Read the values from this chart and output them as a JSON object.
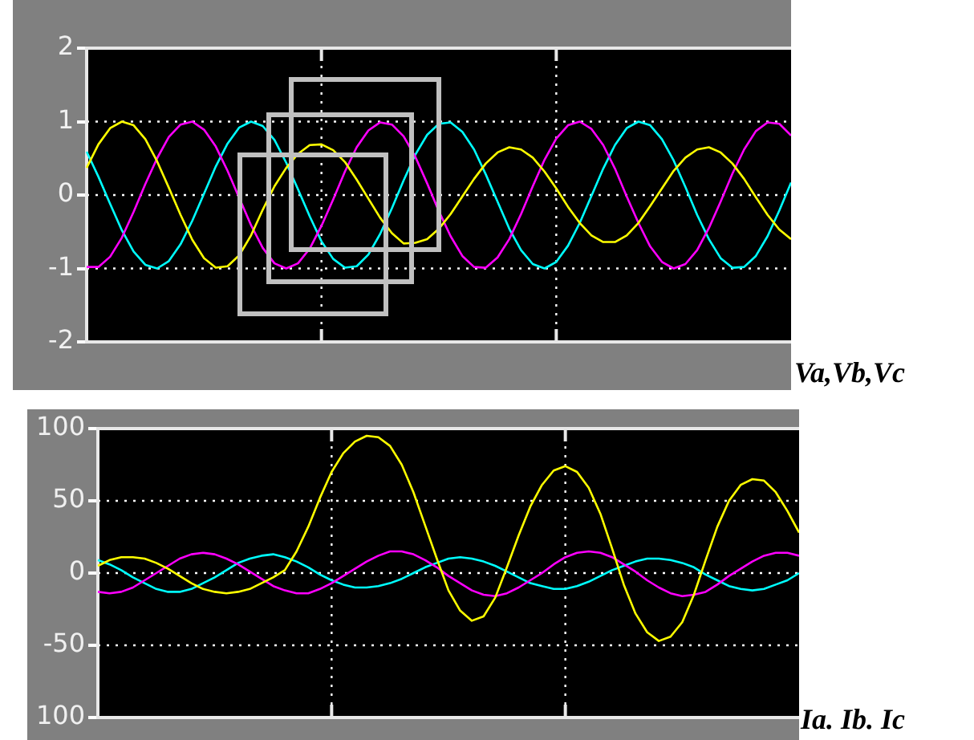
{
  "chart_data": [
    {
      "type": "line",
      "title": "Va,Vb,Vc",
      "categories": [
        null,
        null,
        null,
        null,
        null,
        null,
        null,
        null,
        null,
        null,
        null,
        null,
        null,
        null,
        null,
        null,
        null,
        null,
        null,
        null,
        null,
        null,
        null,
        null,
        null,
        null,
        null,
        null,
        null,
        null,
        null,
        null,
        null,
        null,
        null,
        null,
        null,
        null,
        null,
        null,
        null,
        null,
        null,
        null,
        null,
        null,
        null,
        null,
        null,
        null,
        null,
        null,
        null,
        null,
        null,
        null,
        null,
        null,
        null,
        null,
        null
      ],
      "ylim": [
        -2,
        2
      ],
      "yticks": [
        -2,
        -1,
        0,
        1,
        2
      ],
      "grid": true,
      "tick_labels": "y",
      "marker": "none",
      "series": [
        {
          "color": "#ffff00",
          "values": [
            0.37,
            0.69,
            0.91,
            1.0,
            0.95,
            0.76,
            0.46,
            0.1,
            -0.27,
            -0.61,
            -0.86,
            -0.99,
            -0.97,
            -0.82,
            -0.55,
            -0.2,
            0.12,
            0.37,
            0.56,
            0.68,
            0.69,
            0.61,
            0.45,
            0.21,
            -0.05,
            -0.31,
            -0.52,
            -0.66,
            -0.65,
            -0.6,
            -0.46,
            -0.26,
            -0.02,
            0.22,
            0.43,
            0.58,
            0.65,
            0.62,
            0.51,
            0.32,
            0.09,
            -0.16,
            -0.38,
            -0.55,
            -0.64,
            -0.64,
            -0.55,
            -0.38,
            -0.15,
            0.09,
            0.33,
            0.51,
            0.62,
            0.65,
            0.58,
            0.43,
            0.22,
            -0.03,
            -0.27,
            -0.47,
            -0.6
          ]
        },
        {
          "color": "#ff00ff",
          "values": [
            -0.98,
            -0.98,
            -0.84,
            -0.58,
            -0.23,
            0.15,
            0.5,
            0.79,
            0.96,
            1.0,
            0.89,
            0.66,
            0.33,
            -0.04,
            -0.41,
            -0.72,
            -0.93,
            -1.0,
            -0.93,
            -0.73,
            -0.42,
            -0.06,
            0.32,
            0.65,
            0.88,
            0.99,
            0.96,
            0.8,
            0.52,
            0.16,
            -0.22,
            -0.56,
            -0.83,
            -0.98,
            -0.99,
            -0.85,
            -0.6,
            -0.26,
            0.12,
            0.48,
            0.77,
            0.95,
            1.0,
            0.9,
            0.68,
            0.36,
            -0.02,
            -0.38,
            -0.7,
            -0.91,
            -1.0,
            -0.94,
            -0.75,
            -0.45,
            -0.09,
            0.29,
            0.62,
            0.87,
            0.99,
            0.97,
            0.81
          ]
        },
        {
          "color": "#00ffff",
          "values": [
            0.59,
            0.25,
            -0.12,
            -0.48,
            -0.77,
            -0.95,
            -1.0,
            -0.9,
            -0.67,
            -0.35,
            0.02,
            0.39,
            0.7,
            0.92,
            1.0,
            0.94,
            0.75,
            0.44,
            0.08,
            -0.29,
            -0.63,
            -0.87,
            -0.99,
            -0.97,
            -0.81,
            -0.53,
            -0.18,
            0.2,
            0.55,
            0.82,
            0.97,
            0.99,
            0.86,
            0.62,
            0.28,
            -0.09,
            -0.46,
            -0.75,
            -0.94,
            -1.0,
            -0.91,
            -0.69,
            -0.38,
            -0.01,
            0.36,
            0.68,
            0.91,
            1.0,
            0.95,
            0.76,
            0.47,
            0.11,
            -0.27,
            -0.6,
            -0.86,
            -0.99,
            -0.98,
            -0.83,
            -0.56,
            -0.21,
            0.17
          ]
        }
      ]
    },
    {
      "type": "line",
      "title": "Ia. Ib. Ic",
      "categories": [
        null,
        null,
        null,
        null,
        null,
        null,
        null,
        null,
        null,
        null,
        null,
        null,
        null,
        null,
        null,
        null,
        null,
        null,
        null,
        null,
        null,
        null,
        null,
        null,
        null,
        null,
        null,
        null,
        null,
        null,
        null,
        null,
        null,
        null,
        null,
        null,
        null,
        null,
        null,
        null,
        null,
        null,
        null,
        null,
        null,
        null,
        null,
        null,
        null,
        null,
        null,
        null,
        null,
        null,
        null,
        null,
        null,
        null,
        null,
        null,
        null
      ],
      "ylim": [
        -100,
        100
      ],
      "yticks": [
        {
          "value": -100,
          "label": "100"
        },
        -50,
        0,
        50,
        100
      ],
      "grid": true,
      "tick_labels": "y",
      "marker": "none",
      "series": [
        {
          "color": "#ffff00",
          "values": [
            5,
            9,
            11,
            11,
            10,
            7,
            3,
            -2,
            -7,
            -11,
            -13,
            -14,
            -13,
            -11,
            -7,
            -3,
            2,
            15,
            32,
            52,
            70,
            83,
            91,
            95,
            94,
            88,
            75,
            56,
            33,
            10,
            -12,
            -26,
            -33,
            -30,
            -17,
            4,
            26,
            46,
            61,
            71,
            74,
            70,
            59,
            41,
            17,
            -8,
            -28,
            -41,
            -47,
            -44,
            -34,
            -15,
            9,
            32,
            50,
            61,
            65,
            64,
            56,
            43,
            28
          ]
        },
        {
          "color": "#ff00ff",
          "values": [
            -13,
            -14,
            -13,
            -10,
            -5,
            0,
            5,
            10,
            13,
            14,
            13,
            10,
            6,
            1,
            -4,
            -9,
            -12,
            -14,
            -14,
            -11,
            -7,
            -2,
            3,
            8,
            12,
            15,
            15,
            13,
            9,
            4,
            -2,
            -7,
            -12,
            -15,
            -16,
            -14,
            -10,
            -5,
            0,
            6,
            11,
            14,
            15,
            14,
            11,
            6,
            1,
            -5,
            -10,
            -14,
            -16,
            -15,
            -13,
            -8,
            -2,
            3,
            8,
            12,
            14,
            14,
            12
          ]
        },
        {
          "color": "#00ffff",
          "values": [
            9,
            6,
            2,
            -3,
            -7,
            -11,
            -13,
            -13,
            -11,
            -7,
            -3,
            2,
            7,
            10,
            12,
            13,
            11,
            8,
            4,
            -1,
            -5,
            -8,
            -10,
            -10,
            -9,
            -7,
            -4,
            0,
            4,
            7,
            10,
            11,
            10,
            8,
            5,
            1,
            -3,
            -7,
            -9,
            -11,
            -11,
            -9,
            -6,
            -2,
            2,
            5,
            8,
            10,
            10,
            9,
            7,
            4,
            -1,
            -5,
            -9,
            -11,
            -12,
            -11,
            -8,
            -5,
            0
          ]
        }
      ]
    }
  ]
}
